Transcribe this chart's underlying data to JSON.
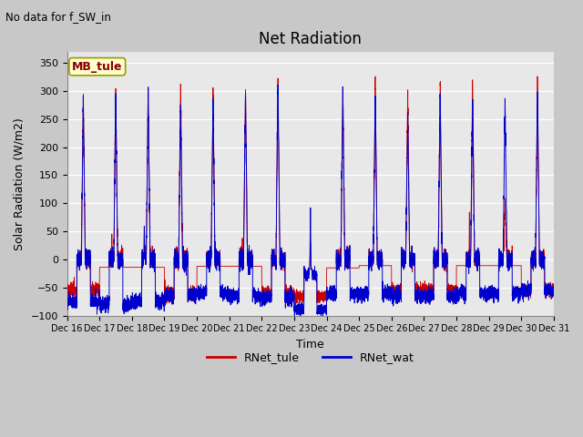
{
  "title": "Net Radiation",
  "xlabel": "Time",
  "ylabel": "Solar Radiation (W/m2)",
  "subtitle": "No data for f_SW_in",
  "legend_label1": "RNet_tule",
  "legend_label2": "RNet_wat",
  "site_label": "MB_tule",
  "ylim": [
    -100,
    370
  ],
  "yticks": [
    -100,
    -50,
    0,
    50,
    100,
    150,
    200,
    250,
    300,
    350
  ],
  "color1": "#cc0000",
  "color2": "#0000cc",
  "fig_bg": "#c8c8c8",
  "plot_bg": "#e8e8e8",
  "start_day": 16,
  "end_day": 31,
  "n_days": 15,
  "points_per_day": 480
}
